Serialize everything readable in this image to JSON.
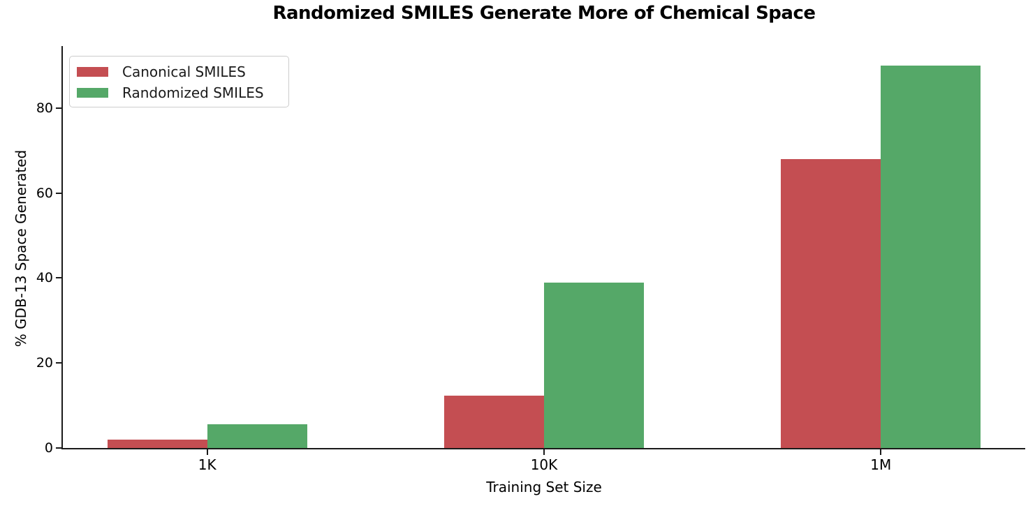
{
  "chart_data": {
    "type": "bar",
    "title": "Randomized SMILES Generate More of Chemical Space",
    "xlabel": "Training Set Size",
    "ylabel": "% GDB-13 Space Generated",
    "categories": [
      "1K",
      "10K",
      "1M"
    ],
    "series": [
      {
        "name": "Canonical SMILES",
        "color": "#c44e52",
        "values": [
          2.0,
          12.3,
          68.0
        ]
      },
      {
        "name": "Randomized SMILES",
        "color": "#55a868",
        "values": [
          5.6,
          39.0,
          90.0
        ]
      }
    ],
    "ylim": [
      0,
      94.6
    ],
    "yticks": [
      0,
      20,
      40,
      60,
      80
    ],
    "grid": false,
    "legend_position": "upper left",
    "spine_color": "#1a1a1a",
    "background_color": "#ffffff"
  }
}
